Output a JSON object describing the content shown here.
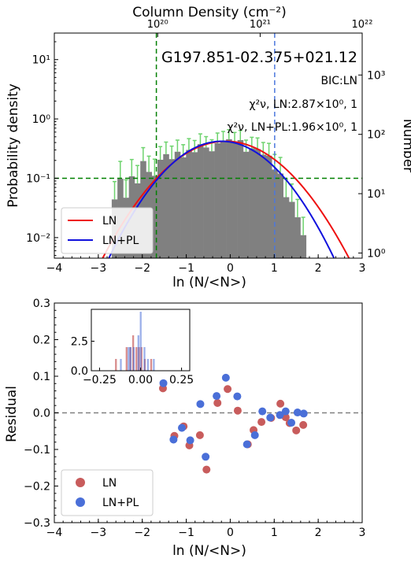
{
  "chart_data": [
    {
      "type": "bar",
      "title": "G197.851-02.375+021.12",
      "annotation_bic": "BIC:LN",
      "annotation_chi_ln": "χ²ν, LN:2.87×10⁰, 1",
      "annotation_chi_lnpl": "χ²ν, LN+PL:1.96×10⁰, 1",
      "xlabel": "ln (N/<N>)",
      "ylabel": "Probability density",
      "ylabel_right": "Number",
      "top_axis_label": "Column Density (cm⁻²)",
      "xlim": [
        -4,
        3
      ],
      "ylim": [
        0.0045,
        28
      ],
      "y_scale": "log",
      "x_ticks": [
        "−4",
        "−3",
        "−2",
        "−1",
        "0",
        "1",
        "2",
        "3"
      ],
      "y_ticks": [
        "10⁻²",
        "10⁻¹",
        "10⁰",
        "10¹"
      ],
      "right_ticks": [
        "10⁰",
        "10¹",
        "10²",
        "10³"
      ],
      "top_ticks": [
        "10²⁰",
        "10²¹",
        "10²²"
      ],
      "top_tick_positions_x": [
        -1.65,
        0.68,
        3.0
      ],
      "right_tick_counts_y": [
        0.0055,
        0.055,
        0.55,
        5.5
      ],
      "legend": [
        "LN",
        "LN+PL"
      ],
      "legend_position": "lower-left",
      "hist_bins": [
        {
          "x": -2.63,
          "y": 0.044
        },
        {
          "x": -2.5,
          "y": 0.098
        },
        {
          "x": -2.37,
          "y": 0.047
        },
        {
          "x": -2.24,
          "y": 0.108
        },
        {
          "x": -2.11,
          "y": 0.082
        },
        {
          "x": -1.98,
          "y": 0.195
        },
        {
          "x": -1.85,
          "y": 0.128
        },
        {
          "x": -1.72,
          "y": 0.11
        },
        {
          "x": -1.59,
          "y": 0.205
        },
        {
          "x": -1.46,
          "y": 0.255
        },
        {
          "x": -1.33,
          "y": 0.21
        },
        {
          "x": -1.2,
          "y": 0.28
        },
        {
          "x": -1.07,
          "y": 0.225
        },
        {
          "x": -0.94,
          "y": 0.3
        },
        {
          "x": -0.81,
          "y": 0.275
        },
        {
          "x": -0.68,
          "y": 0.375
        },
        {
          "x": -0.55,
          "y": 0.33
        },
        {
          "x": -0.42,
          "y": 0.285
        },
        {
          "x": -0.29,
          "y": 0.39
        },
        {
          "x": -0.16,
          "y": 0.42
        },
        {
          "x": -0.03,
          "y": 0.455
        },
        {
          "x": 0.1,
          "y": 0.4
        },
        {
          "x": 0.23,
          "y": 0.44
        },
        {
          "x": 0.36,
          "y": 0.28
        },
        {
          "x": 0.49,
          "y": 0.32
        },
        {
          "x": 0.62,
          "y": 0.31
        },
        {
          "x": 0.75,
          "y": 0.25
        },
        {
          "x": 0.88,
          "y": 0.24
        },
        {
          "x": 1.01,
          "y": 0.14
        },
        {
          "x": 1.14,
          "y": 0.12
        },
        {
          "x": 1.27,
          "y": 0.048
        },
        {
          "x": 1.4,
          "y": 0.04
        },
        {
          "x": 1.53,
          "y": 0.022
        },
        {
          "x": 1.66,
          "y": 0.011
        }
      ],
      "ln_fit": {
        "peak": 0.42,
        "mu": -0.1,
        "sigma": 0.93
      },
      "lnpl_fit": {
        "peak": 0.42,
        "mu": -0.2,
        "sigma": 0.85
      },
      "hlines": [
        {
          "y": 0.1,
          "color": "#008000",
          "style": "dashed"
        }
      ],
      "vlines": [
        {
          "x": -1.68,
          "color": "#008000",
          "style": "dashed"
        },
        {
          "x": 1.01,
          "color": "#4c78dd",
          "style": "dashed"
        }
      ],
      "colors": {
        "hist": "#808080",
        "errorbar": "#6ed36e",
        "ln": "#ee1111",
        "lnpl": "#1111dd"
      }
    },
    {
      "type": "scatter",
      "xlabel": "ln (N/<N>)",
      "ylabel": "Residual",
      "xlim": [
        -4,
        3
      ],
      "ylim": [
        -0.3,
        0.3
      ],
      "x_ticks": [
        "−4",
        "−3",
        "−2",
        "−1",
        "0",
        "1",
        "2",
        "3"
      ],
      "y_ticks": [
        "−0.3",
        "−0.2",
        "−0.1",
        "0.0",
        "0.1",
        "0.2",
        "0.3"
      ],
      "legend": [
        "LN",
        "LN+PL"
      ],
      "legend_position": "lower-left",
      "hline": {
        "y": 0,
        "color": "#808080",
        "style": "dashed"
      },
      "series": [
        {
          "name": "LN",
          "color": "#c85c5c",
          "points": [
            [
              -1.53,
              0.067
            ],
            [
              -1.27,
              -0.063
            ],
            [
              -1.06,
              -0.037
            ],
            [
              -0.93,
              -0.089
            ],
            [
              -0.69,
              -0.061
            ],
            [
              -0.54,
              -0.155
            ],
            [
              -0.29,
              0.027
            ],
            [
              -0.06,
              0.065
            ],
            [
              0.17,
              0.006
            ],
            [
              0.4,
              -0.086
            ],
            [
              0.53,
              -0.047
            ],
            [
              0.71,
              -0.025
            ],
            [
              0.93,
              -0.014
            ],
            [
              1.14,
              0.025
            ],
            [
              1.26,
              -0.012
            ],
            [
              1.35,
              -0.028
            ],
            [
              1.5,
              -0.048
            ],
            [
              1.66,
              -0.033
            ]
          ]
        },
        {
          "name": "LN+PL",
          "color": "#4a6fd8",
          "points": [
            [
              -1.52,
              0.081
            ],
            [
              -1.29,
              -0.073
            ],
            [
              -1.1,
              -0.041
            ],
            [
              -0.91,
              -0.075
            ],
            [
              -0.68,
              0.024
            ],
            [
              -0.56,
              -0.12
            ],
            [
              -0.31,
              0.046
            ],
            [
              -0.1,
              0.096
            ],
            [
              0.16,
              0.045
            ],
            [
              0.38,
              -0.086
            ],
            [
              0.56,
              -0.061
            ],
            [
              0.73,
              0.004
            ],
            [
              0.91,
              -0.013
            ],
            [
              1.13,
              -0.006
            ],
            [
              1.26,
              0.004
            ],
            [
              1.39,
              -0.027
            ],
            [
              1.53,
              0.001
            ],
            [
              1.67,
              -0.002
            ]
          ]
        }
      ],
      "inset": {
        "xlim": [
          -0.3,
          0.3
        ],
        "ylim": [
          0,
          5.2
        ],
        "x_ticks": [
          "−0.25",
          "0.00",
          "0.25"
        ],
        "y_ticks": [
          "0.0",
          "2.5"
        ],
        "ln_hist": [
          {
            "x": -0.15,
            "y": 1
          },
          {
            "x": -0.085,
            "y": 2
          },
          {
            "x": -0.062,
            "y": 2
          },
          {
            "x": -0.045,
            "y": 3
          },
          {
            "x": -0.025,
            "y": 2
          },
          {
            "x": -0.01,
            "y": 2
          },
          {
            "x": 0.006,
            "y": 2
          },
          {
            "x": 0.026,
            "y": 1
          },
          {
            "x": 0.065,
            "y": 1
          }
        ],
        "lnpl_hist": [
          {
            "x": -0.12,
            "y": 1
          },
          {
            "x": -0.073,
            "y": 2
          },
          {
            "x": -0.061,
            "y": 2
          },
          {
            "x": -0.041,
            "y": 2
          },
          {
            "x": -0.013,
            "y": 3
          },
          {
            "x": 0.001,
            "y": 5
          },
          {
            "x": 0.024,
            "y": 2
          },
          {
            "x": 0.045,
            "y": 1
          },
          {
            "x": 0.081,
            "y": 1
          }
        ]
      }
    }
  ]
}
